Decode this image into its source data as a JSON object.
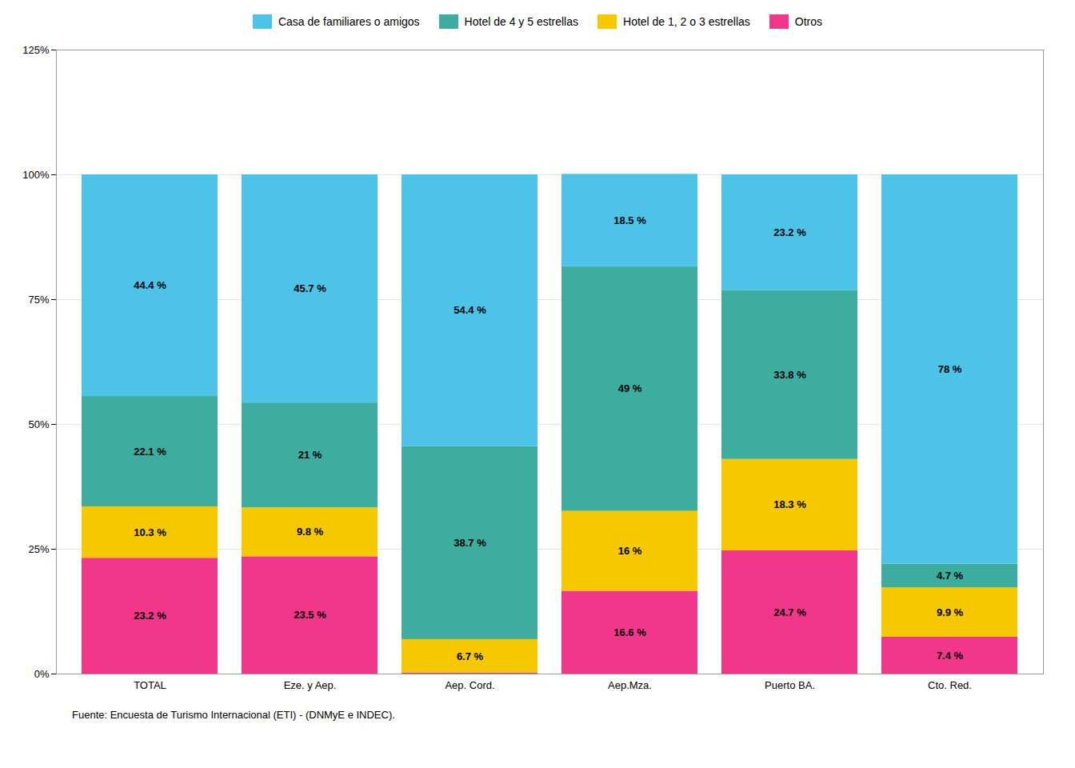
{
  "chart_data": {
    "type": "bar",
    "stacked": true,
    "categories": [
      "TOTAL",
      "Eze. y Aep.",
      "Aep. Cord.",
      "Aep.Mza.",
      "Puerto BA.",
      "Cto. Red."
    ],
    "series": [
      {
        "name": "Otros",
        "color": "#F0378A",
        "values": [
          23.2,
          23.5,
          0.2,
          16.6,
          24.7,
          7.4
        ],
        "value_labels": [
          "23.2 %",
          "23.5 %",
          null,
          "16.6 %",
          "24.7 %",
          "7.4 %"
        ]
      },
      {
        "name": "Hotel de 1, 2 o 3 estrellas",
        "color": "#F5C800",
        "values": [
          10.3,
          9.8,
          6.7,
          16.0,
          18.3,
          9.9
        ],
        "value_labels": [
          "10.3 %",
          "9.8 %",
          "6.7 %",
          "16 %",
          "18.3 %",
          "9.9 %"
        ]
      },
      {
        "name": "Hotel de 4 y 5 estrellas",
        "color": "#3DADA0",
        "values": [
          22.1,
          21.0,
          38.7,
          49.0,
          33.8,
          4.7
        ],
        "value_labels": [
          "22.1 %",
          "21 %",
          "38.7 %",
          "49 %",
          "33.8 %",
          "4.7 %"
        ]
      },
      {
        "name": "Casa de familiares o amigos",
        "color": "#4DC3E8",
        "values": [
          44.4,
          45.7,
          54.4,
          18.5,
          23.2,
          78.0
        ],
        "value_labels": [
          "44.4 %",
          "45.7 %",
          "54.4 %",
          "18.5 %",
          "23.2 %",
          "78 %"
        ]
      }
    ],
    "ylim": [
      0,
      125
    ],
    "yticks": [
      {
        "value": 0,
        "label": "0%"
      },
      {
        "value": 25,
        "label": "25%"
      },
      {
        "value": 50,
        "label": "50%"
      },
      {
        "value": 75,
        "label": "75%"
      },
      {
        "value": 100,
        "label": "100%"
      },
      {
        "value": 125,
        "label": "125%"
      }
    ],
    "grid": true,
    "legend": "top",
    "data_labels": true,
    "caption": "Fuente: Encuesta de Turismo Internacional (ETI) - (DNMyE e INDEC)."
  }
}
